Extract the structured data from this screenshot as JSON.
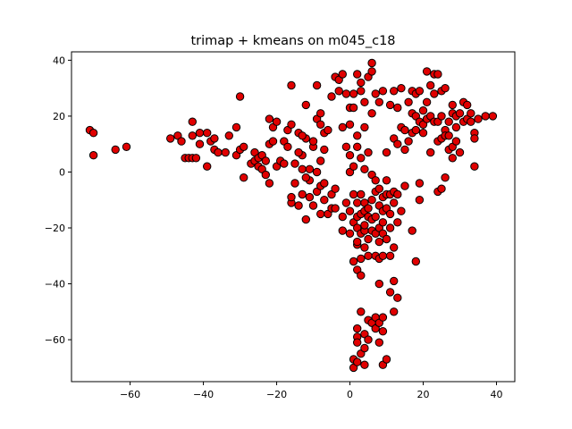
{
  "chart_data": {
    "type": "scatter",
    "title": "trimap + kmeans on m045_c18",
    "xlabel": "",
    "ylabel": "",
    "xlim": [
      -76,
      45
    ],
    "ylim": [
      -75,
      43
    ],
    "xticks": [
      -60,
      -40,
      -20,
      0,
      20,
      40
    ],
    "yticks": [
      -60,
      -40,
      -20,
      0,
      20,
      40
    ],
    "xtick_labels": [
      "−60",
      "−40",
      "−20",
      "0",
      "20",
      "40"
    ],
    "ytick_labels": [
      "−60",
      "−40",
      "−20",
      "0",
      "20",
      "40"
    ],
    "grid": false,
    "legend": "none",
    "marker_color": "#e00000",
    "marker_edge": "#000000",
    "points": [
      [
        -71,
        15
      ],
      [
        -70,
        14
      ],
      [
        -70,
        6
      ],
      [
        -64,
        8
      ],
      [
        -61,
        9
      ],
      [
        -49,
        12
      ],
      [
        -47,
        13
      ],
      [
        -46,
        11
      ],
      [
        -45,
        5
      ],
      [
        -44,
        5
      ],
      [
        -43,
        5
      ],
      [
        -42,
        5
      ],
      [
        -43,
        13
      ],
      [
        -43,
        18
      ],
      [
        -41,
        14
      ],
      [
        -41,
        10
      ],
      [
        -39,
        14
      ],
      [
        -39,
        2
      ],
      [
        -38,
        11
      ],
      [
        -37,
        8
      ],
      [
        -37,
        12
      ],
      [
        -36,
        7
      ],
      [
        -34,
        7
      ],
      [
        -33,
        13
      ],
      [
        -31,
        16
      ],
      [
        -31,
        6
      ],
      [
        -30,
        8
      ],
      [
        -29,
        9
      ],
      [
        -30,
        27
      ],
      [
        -29,
        -2
      ],
      [
        -27,
        3
      ],
      [
        -26,
        4
      ],
      [
        -26,
        7
      ],
      [
        -25,
        5
      ],
      [
        -25,
        2
      ],
      [
        -24,
        1
      ],
      [
        -24,
        6
      ],
      [
        -23,
        4
      ],
      [
        -23,
        -1
      ],
      [
        -22,
        -4
      ],
      [
        -22,
        10
      ],
      [
        -22,
        19
      ],
      [
        -21,
        11
      ],
      [
        -21,
        16
      ],
      [
        -20,
        2
      ],
      [
        -20,
        18
      ],
      [
        -19,
        4
      ],
      [
        -18,
        11
      ],
      [
        -18,
        3
      ],
      [
        -17,
        9
      ],
      [
        -17,
        15
      ],
      [
        -16,
        -11
      ],
      [
        -16,
        17
      ],
      [
        -16,
        -9
      ],
      [
        -15,
        3
      ],
      [
        -15,
        -4
      ],
      [
        -14,
        14
      ],
      [
        -14,
        -12
      ],
      [
        -13,
        1
      ],
      [
        -13,
        -8
      ],
      [
        -13,
        6
      ],
      [
        -12,
        12
      ],
      [
        -12,
        24
      ],
      [
        -12,
        -17
      ],
      [
        -11,
        -9
      ],
      [
        -11,
        -3
      ],
      [
        -10,
        9
      ],
      [
        -10,
        11
      ],
      [
        -10,
        -12
      ],
      [
        -9,
        31
      ],
      [
        -9,
        -7
      ],
      [
        -9,
        19
      ],
      [
        -8,
        -5
      ],
      [
        -8,
        4
      ],
      [
        -8,
        21
      ],
      [
        -7,
        -10
      ],
      [
        -7,
        -4
      ],
      [
        -7,
        8
      ],
      [
        -7,
        14
      ],
      [
        -16,
        31
      ],
      [
        -14,
        7
      ],
      [
        -13,
        13
      ],
      [
        -12,
        -2
      ],
      [
        -11,
        1
      ],
      [
        -9,
        0
      ],
      [
        -8,
        17
      ],
      [
        -8,
        -15
      ],
      [
        -6,
        -15
      ],
      [
        -6,
        15
      ],
      [
        -5,
        -8
      ],
      [
        -5,
        -13
      ],
      [
        -5,
        27
      ],
      [
        -4,
        34
      ],
      [
        -4,
        -13
      ],
      [
        -4,
        -6
      ],
      [
        -3,
        33
      ],
      [
        -3,
        29
      ],
      [
        -2,
        35
      ],
      [
        -2,
        -16
      ],
      [
        -2,
        -21
      ],
      [
        -2,
        16
      ],
      [
        -1,
        28
      ],
      [
        -1,
        -11
      ],
      [
        -1,
        9
      ],
      [
        0,
        -14
      ],
      [
        0,
        -22
      ],
      [
        0,
        17
      ],
      [
        0,
        23
      ],
      [
        0,
        0
      ],
      [
        0,
        6
      ],
      [
        1,
        28
      ],
      [
        1,
        -18
      ],
      [
        1,
        -8
      ],
      [
        1,
        -32
      ],
      [
        1,
        -67
      ],
      [
        1,
        -70
      ],
      [
        1,
        2
      ],
      [
        1,
        23
      ],
      [
        2,
        35
      ],
      [
        2,
        -16
      ],
      [
        2,
        -26
      ],
      [
        2,
        -35
      ],
      [
        2,
        -59
      ],
      [
        2,
        -61
      ],
      [
        2,
        -68
      ],
      [
        2,
        -56
      ],
      [
        2,
        -25
      ],
      [
        2,
        -20
      ],
      [
        2,
        -11
      ],
      [
        2,
        9
      ],
      [
        2,
        13
      ],
      [
        3,
        -8
      ],
      [
        3,
        -22
      ],
      [
        3,
        -50
      ],
      [
        3,
        -37
      ],
      [
        3,
        -65
      ],
      [
        3,
        -31
      ],
      [
        3,
        -15
      ],
      [
        3,
        29
      ],
      [
        3,
        32
      ],
      [
        3,
        5
      ],
      [
        4,
        -14
      ],
      [
        4,
        -21
      ],
      [
        4,
        -27
      ],
      [
        4,
        -58
      ],
      [
        4,
        -63
      ],
      [
        4,
        -69
      ],
      [
        4,
        -11
      ],
      [
        4,
        -19
      ],
      [
        4,
        1
      ],
      [
        4,
        25
      ],
      [
        4,
        16
      ],
      [
        5,
        34
      ],
      [
        5,
        -16
      ],
      [
        5,
        -24
      ],
      [
        5,
        -30
      ],
      [
        5,
        -53
      ],
      [
        5,
        -60
      ],
      [
        5,
        -13
      ],
      [
        5,
        7
      ],
      [
        6,
        39
      ],
      [
        6,
        -1
      ],
      [
        6,
        -21
      ],
      [
        6,
        -54
      ],
      [
        6,
        -10
      ],
      [
        6,
        -17
      ],
      [
        6,
        36
      ],
      [
        6,
        21
      ],
      [
        7,
        -7
      ],
      [
        7,
        -16
      ],
      [
        7,
        -22
      ],
      [
        7,
        -30
      ],
      [
        7,
        -52
      ],
      [
        7,
        -56
      ],
      [
        7,
        28
      ],
      [
        7,
        -3
      ],
      [
        8,
        -12
      ],
      [
        8,
        -20
      ],
      [
        8,
        -40
      ],
      [
        8,
        -25
      ],
      [
        8,
        -31
      ],
      [
        8,
        -54
      ],
      [
        8,
        -61
      ],
      [
        8,
        -6
      ],
      [
        8,
        25
      ],
      [
        9,
        -9
      ],
      [
        9,
        -14
      ],
      [
        9,
        -22
      ],
      [
        9,
        -30
      ],
      [
        9,
        -52
      ],
      [
        9,
        -57
      ],
      [
        9,
        -69
      ],
      [
        9,
        -18
      ],
      [
        9,
        29
      ],
      [
        10,
        -24
      ],
      [
        10,
        -13
      ],
      [
        10,
        -8
      ],
      [
        10,
        -3
      ],
      [
        10,
        7
      ],
      [
        10,
        -67
      ],
      [
        11,
        -20
      ],
      [
        11,
        -30
      ],
      [
        11,
        -8
      ],
      [
        11,
        -15
      ],
      [
        11,
        -43
      ],
      [
        11,
        24
      ],
      [
        12,
        -27
      ],
      [
        12,
        -39
      ],
      [
        12,
        -50
      ],
      [
        12,
        -11
      ],
      [
        12,
        -7
      ],
      [
        12,
        12
      ],
      [
        12,
        29
      ],
      [
        13,
        -8
      ],
      [
        13,
        -18
      ],
      [
        13,
        -45
      ],
      [
        13,
        23
      ],
      [
        13,
        10
      ],
      [
        14,
        -14
      ],
      [
        14,
        16
      ],
      [
        14,
        30
      ],
      [
        15,
        15
      ],
      [
        15,
        -5
      ],
      [
        15,
        8
      ],
      [
        16,
        25
      ],
      [
        16,
        11
      ],
      [
        17,
        -21
      ],
      [
        17,
        21
      ],
      [
        17,
        29
      ],
      [
        17,
        14
      ],
      [
        18,
        28
      ],
      [
        18,
        -32
      ],
      [
        18,
        20
      ],
      [
        18,
        15
      ],
      [
        19,
        -10
      ],
      [
        19,
        -4
      ],
      [
        19,
        29
      ],
      [
        19,
        18
      ],
      [
        20,
        17
      ],
      [
        20,
        22
      ],
      [
        20,
        14
      ],
      [
        21,
        36
      ],
      [
        21,
        25
      ],
      [
        21,
        19
      ],
      [
        22,
        7
      ],
      [
        22,
        20
      ],
      [
        22,
        31
      ],
      [
        23,
        35
      ],
      [
        23,
        18
      ],
      [
        23,
        28
      ],
      [
        24,
        -7
      ],
      [
        24,
        11
      ],
      [
        24,
        35
      ],
      [
        24,
        18
      ],
      [
        25,
        29
      ],
      [
        25,
        -6
      ],
      [
        25,
        12
      ],
      [
        25,
        20
      ],
      [
        26,
        -2
      ],
      [
        26,
        15
      ],
      [
        26,
        13
      ],
      [
        26,
        30
      ],
      [
        27,
        18
      ],
      [
        27,
        8
      ],
      [
        27,
        13
      ],
      [
        28,
        21
      ],
      [
        28,
        24
      ],
      [
        28,
        9
      ],
      [
        28,
        5
      ],
      [
        29,
        20
      ],
      [
        29,
        16
      ],
      [
        29,
        11
      ],
      [
        30,
        7
      ],
      [
        30,
        21
      ],
      [
        31,
        25
      ],
      [
        31,
        18
      ],
      [
        32,
        24
      ],
      [
        32,
        19
      ],
      [
        33,
        21
      ],
      [
        33,
        18
      ],
      [
        34,
        14
      ],
      [
        34,
        12
      ],
      [
        34,
        2
      ],
      [
        35,
        19
      ],
      [
        37,
        20
      ],
      [
        39,
        20
      ]
    ]
  }
}
